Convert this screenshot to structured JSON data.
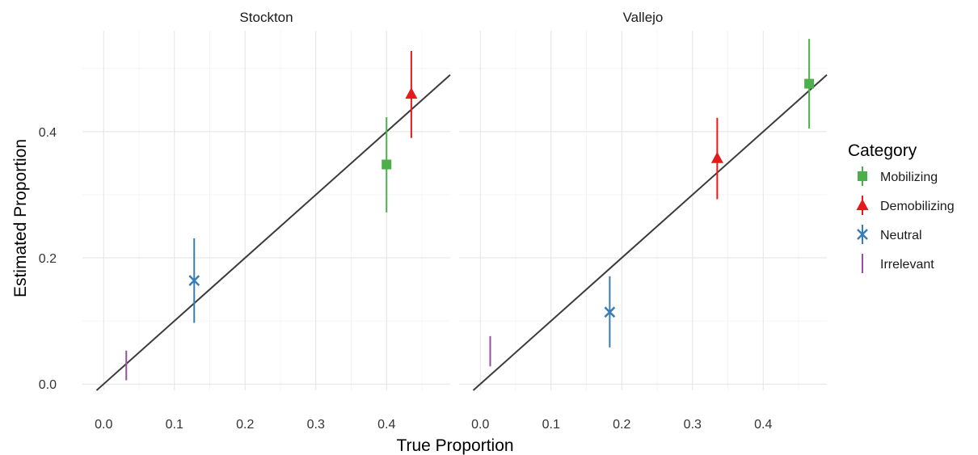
{
  "chart_data": {
    "type": "scatter",
    "xlabel": "True Proportion",
    "ylabel": "Estimated Proportion",
    "xlim": [
      -0.03,
      0.49
    ],
    "ylim": [
      -0.01,
      0.56
    ],
    "x_ticks": [
      0.0,
      0.1,
      0.2,
      0.3,
      0.4
    ],
    "x_tick_labels": [
      "0.0",
      "0.1",
      "0.2",
      "0.3",
      "0.4"
    ],
    "y_ticks": [
      0.0,
      0.2,
      0.4
    ],
    "y_tick_labels": [
      "0.0",
      "0.2",
      "0.4"
    ],
    "grid": true,
    "reference_line": "y = x",
    "legend": {
      "title": "Category",
      "position": "right",
      "entries": [
        {
          "name": "Mobilizing",
          "color": "#4daf4a",
          "shape": "square"
        },
        {
          "name": "Demobilizing",
          "color": "#e41a1c",
          "shape": "triangle"
        },
        {
          "name": "Neutral",
          "color": "#377eb8",
          "shape": "cross"
        },
        {
          "name": "Irrelevant",
          "color": "#984ea3",
          "shape": "none"
        }
      ]
    },
    "panels": [
      {
        "title": "Stockton",
        "points": [
          {
            "category": "Mobilizing",
            "x": 0.4,
            "y": 0.348,
            "ymin": 0.272,
            "ymax": 0.423
          },
          {
            "category": "Demobilizing",
            "x": 0.435,
            "y": 0.46,
            "ymin": 0.39,
            "ymax": 0.528
          },
          {
            "category": "Neutral",
            "x": 0.128,
            "y": 0.164,
            "ymin": 0.097,
            "ymax": 0.231
          },
          {
            "category": "Irrelevant",
            "x": 0.032,
            "y": null,
            "ymin": 0.006,
            "ymax": 0.053
          }
        ]
      },
      {
        "title": "Vallejo",
        "points": [
          {
            "category": "Mobilizing",
            "x": 0.465,
            "y": 0.476,
            "ymin": 0.405,
            "ymax": 0.547
          },
          {
            "category": "Demobilizing",
            "x": 0.335,
            "y": 0.358,
            "ymin": 0.293,
            "ymax": 0.422
          },
          {
            "category": "Neutral",
            "x": 0.183,
            "y": 0.114,
            "ymin": 0.058,
            "ymax": 0.171
          },
          {
            "category": "Irrelevant",
            "x": 0.014,
            "y": null,
            "ymin": 0.028,
            "ymax": 0.076
          }
        ]
      }
    ]
  }
}
